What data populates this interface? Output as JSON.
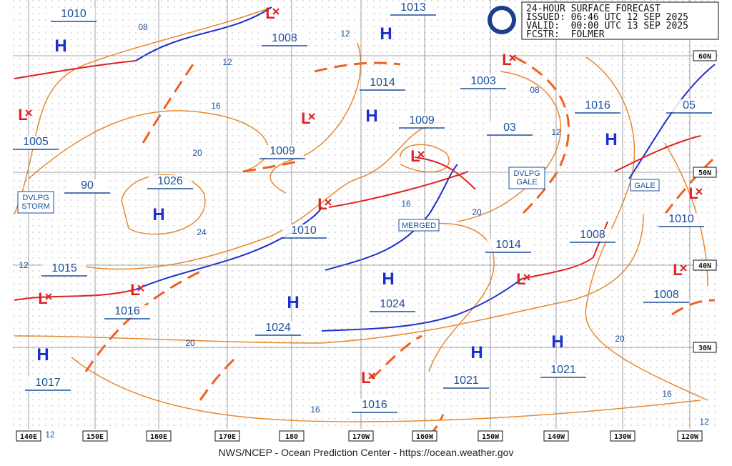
{
  "header": {
    "lines": [
      "24-HOUR SURFACE FORECAST",
      "ISSUED: 06:46 UTC 12 SEP 2025",
      "VALID:  00:00 UTC 13 SEP 2025",
      "FCSTR:  FOLMER"
    ]
  },
  "footer": "NWS/NCEP - Ocean Prediction Center - https://ocean.weather.gov",
  "pressure_labels": [
    "1010",
    "1013",
    "1008",
    "1014",
    "1003",
    "1016",
    "05",
    "1009",
    "03",
    "1005",
    "1009",
    "1026",
    "90",
    "1010",
    "1010",
    "1008",
    "1014",
    "1015",
    "1016",
    "1024",
    "1024",
    "1008",
    "1021",
    "1021",
    "1017",
    "1016"
  ],
  "highs": [
    "H",
    "H",
    "H",
    "H",
    "H",
    "H",
    "H",
    "H",
    "H",
    "H"
  ],
  "lows": [
    "L",
    "L",
    "L",
    "L",
    "L",
    "L",
    "L",
    "L",
    "L",
    "L",
    "L",
    "L"
  ],
  "isobar_labels": [
    "08",
    "12",
    "12",
    "16",
    "20",
    "24",
    "16",
    "20",
    "08",
    "12",
    "20",
    "16",
    "20",
    "16",
    "12",
    "12",
    "12"
  ],
  "lon_labels": [
    "140E",
    "150E",
    "160E",
    "170E",
    "180",
    "170W",
    "160W",
    "150W",
    "140W",
    "130W",
    "120W"
  ],
  "lat_labels": [
    "60N",
    "50N",
    "40N",
    "30N"
  ],
  "annotations": [
    "DVLPG STORM",
    "DVLPG GALE",
    "GALE",
    "MERGED"
  ]
}
